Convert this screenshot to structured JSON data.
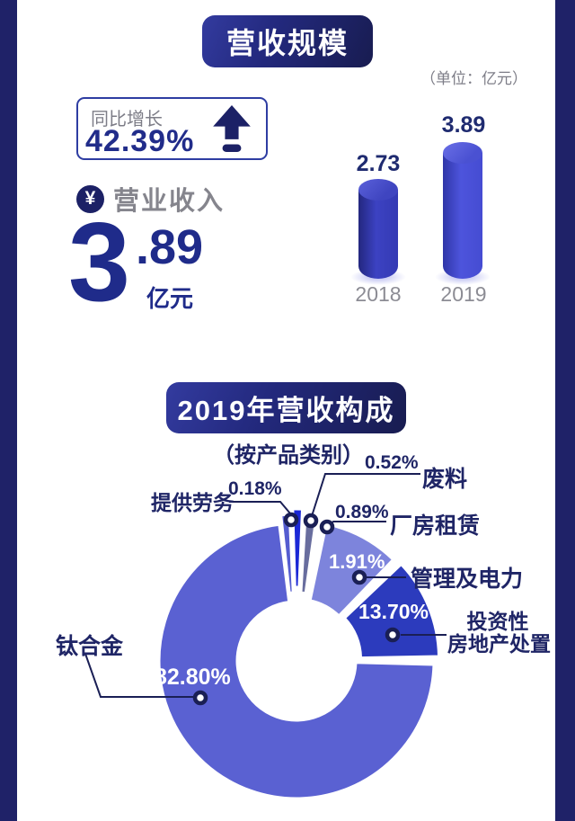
{
  "chart_data": [
    {
      "type": "bar",
      "title": "营收规模",
      "unit": "亿元",
      "categories": [
        "2018",
        "2019"
      ],
      "values": [
        2.73,
        3.89
      ],
      "annotations": [
        "同比增长 42.39%",
        "营业收入 3.89 亿元",
        "（单位：亿元）"
      ],
      "legend_position": "none",
      "grid": false
    },
    {
      "type": "pie",
      "title": "2019年营收构成",
      "subtitle": "（按产品类别）",
      "labels": [
        "提供劳务",
        "废料",
        "厂房租赁",
        "管理及电力",
        "投资性房地产处置",
        "钛合金"
      ],
      "values": [
        0.18,
        0.52,
        0.89,
        1.91,
        13.7,
        82.8
      ],
      "unit": "%",
      "donut": true,
      "colors": [
        "#545cd0",
        "#1b28d6",
        "#686d9e",
        "#7d84dc",
        "#2c3bbd",
        "#5a61d2"
      ]
    }
  ],
  "header": {
    "title": "营收规模",
    "unit_note": "（单位：亿元）"
  },
  "growth": {
    "label": "同比增长",
    "value": "42.39%"
  },
  "revenue": {
    "currency": "¥",
    "label": "营业收入",
    "int": "3",
    "dec": ".89",
    "unit": "亿元"
  },
  "bars": {
    "items": [
      {
        "year": "2018",
        "value": "2.73"
      },
      {
        "year": "2019",
        "value": "3.89"
      }
    ]
  },
  "composition": {
    "title": "2019年营收构成",
    "subtitle": "（按产品类别）",
    "slices": [
      {
        "name": "提供劳务",
        "pct": "0.18%"
      },
      {
        "name": "废料",
        "pct": "0.52%"
      },
      {
        "name": "厂房租赁",
        "pct": "0.89%"
      },
      {
        "name": "管理及电力",
        "pct": "1.91%"
      },
      {
        "name": "投资性房地产处置",
        "name_line1": "投资性",
        "name_line2": "房地产处置",
        "pct": "13.70%"
      },
      {
        "name": "钛合金",
        "pct": "82.80%"
      }
    ]
  },
  "colors": {
    "stripe": "#1f2268",
    "badge_dark": "#181c50",
    "badge_light": "#333b9f",
    "navy_text": "#1f2566",
    "blue_value": "#212c8a",
    "gray_text": "#7d7d87",
    "connector": "#1a1f55"
  }
}
